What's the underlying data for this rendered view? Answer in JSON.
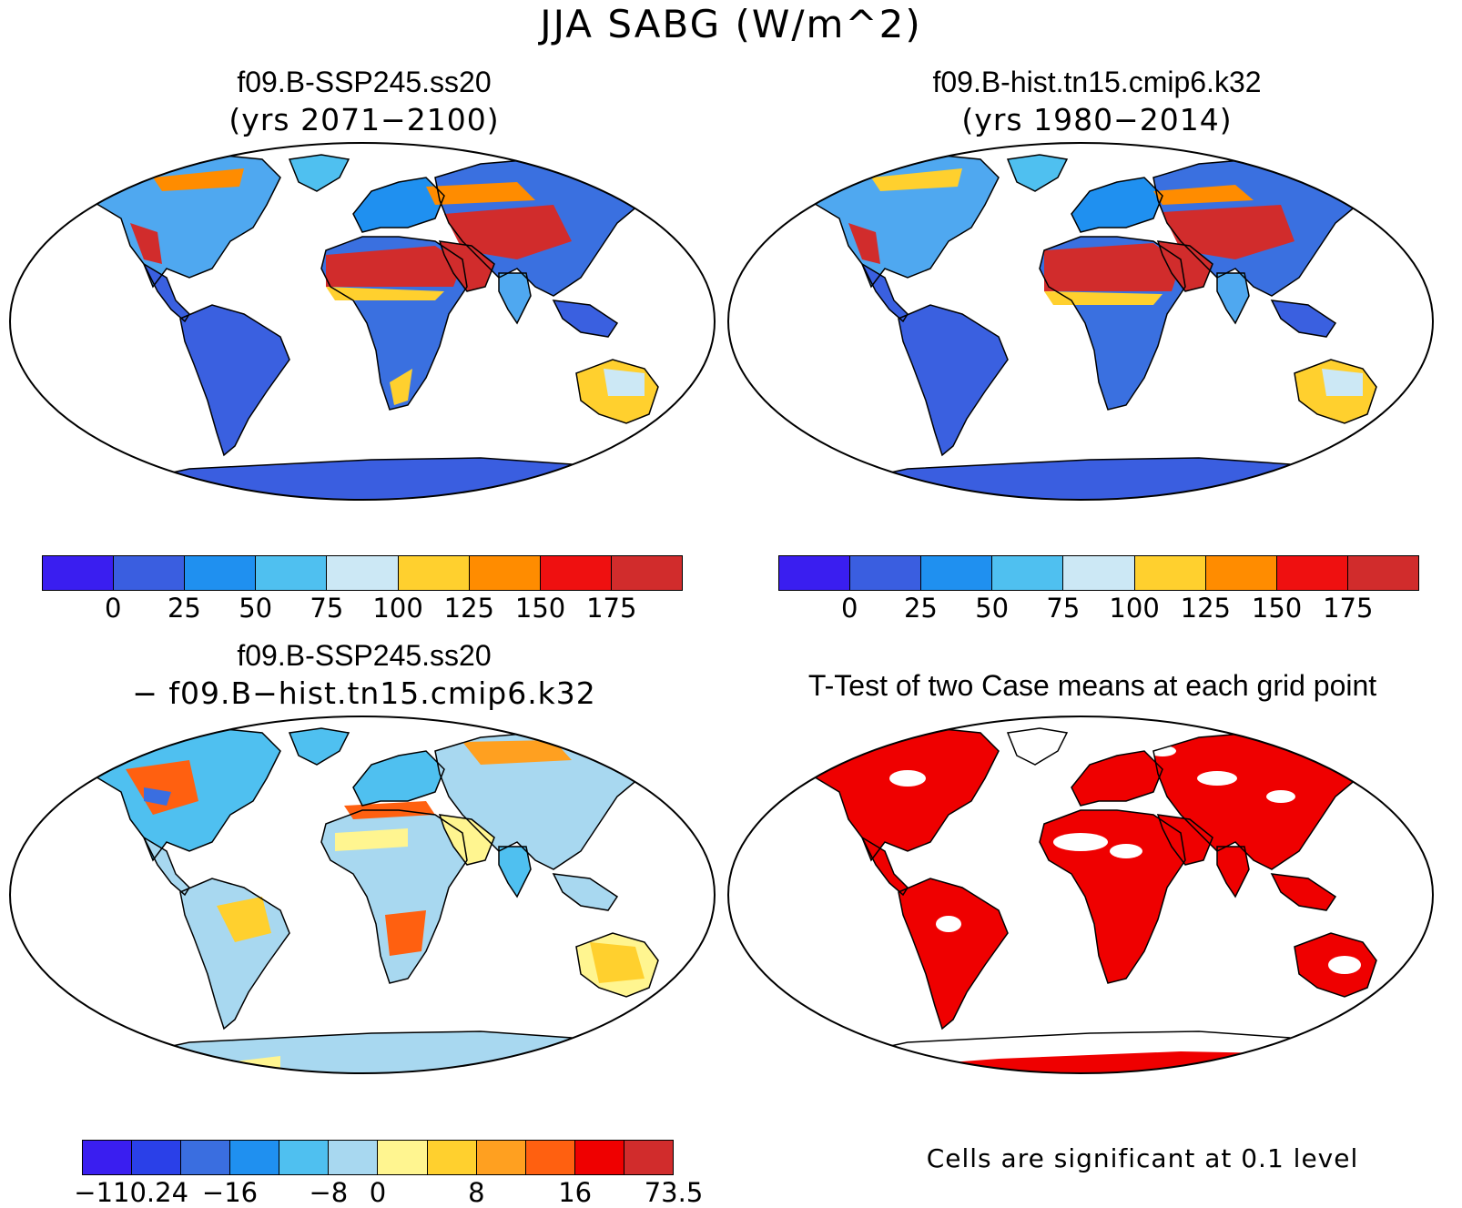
{
  "title": "JJA SABG (W/m^2)",
  "panels": [
    {
      "title": "f09.B-SSP245.ss20",
      "subtitle": "(yrs 2071−2100)"
    },
    {
      "title": "f09.B-hist.tn15.cmip6.k32",
      "subtitle": "(yrs 1980−2014)"
    },
    {
      "title": "f09.B-SSP245.ss20",
      "subtitle": "− f09.B−hist.tn15.cmip6.k32"
    },
    {
      "title": "T-Test of two Case means at each grid point",
      "subtitle": ""
    }
  ],
  "colorbars": {
    "absolute": {
      "colors": [
        "#3a1ef0",
        "#3a5ee0",
        "#1f90f0",
        "#4fc0f0",
        "#cce8f5",
        "#ffd02e",
        "#ff8c00",
        "#ef1010",
        "#d12c2c"
      ],
      "tick_labels": [
        "0",
        "25",
        "50",
        "75",
        "100",
        "125",
        "150",
        "175"
      ]
    },
    "difference": {
      "colors": [
        "#3a1ef0",
        "#2a40e8",
        "#3a6ee0",
        "#1f90f0",
        "#4fc0f0",
        "#a8d8f0",
        "#fff590",
        "#ffd02e",
        "#ffa020",
        "#ff6010",
        "#ef0000",
        "#d12c2c"
      ],
      "tick_labels": [
        "−110.24",
        "−16",
        "−8",
        "0",
        "8",
        "16",
        "73.5"
      ]
    }
  },
  "significance_note": "Cells are significant at 0.1 level",
  "colors": {
    "significant": "#ef0000",
    "coastline": "#000000"
  }
}
